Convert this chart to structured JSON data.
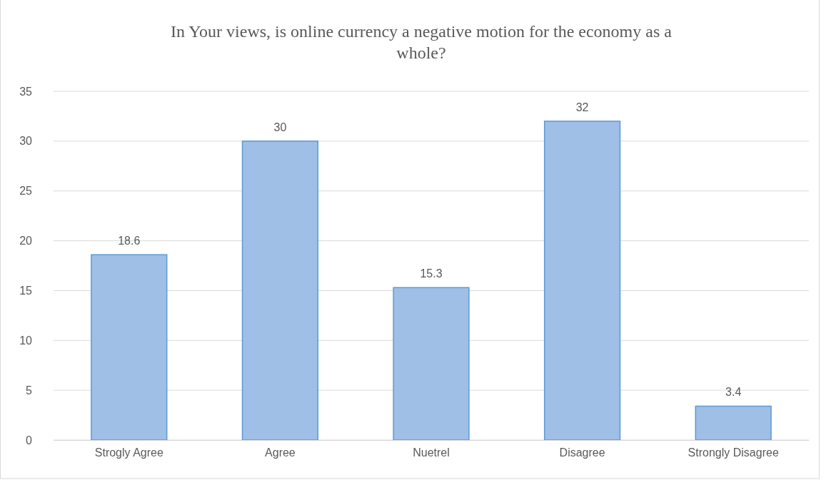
{
  "chart_data": {
    "type": "bar",
    "title": "In Your views, is online currency a negative motion for the economy as a whole?",
    "categories": [
      "Strogly Agree",
      "Agree",
      "Nuetrel",
      "Disagree",
      "Strongly Disagree"
    ],
    "values": [
      18.6,
      30,
      15.3,
      32,
      3.4
    ],
    "color": "#9fbfe6",
    "ylim": [
      0,
      35
    ],
    "yticks": [
      0,
      5,
      10,
      15,
      20,
      25,
      30,
      35
    ],
    "grid": "y",
    "data_labels": true
  }
}
